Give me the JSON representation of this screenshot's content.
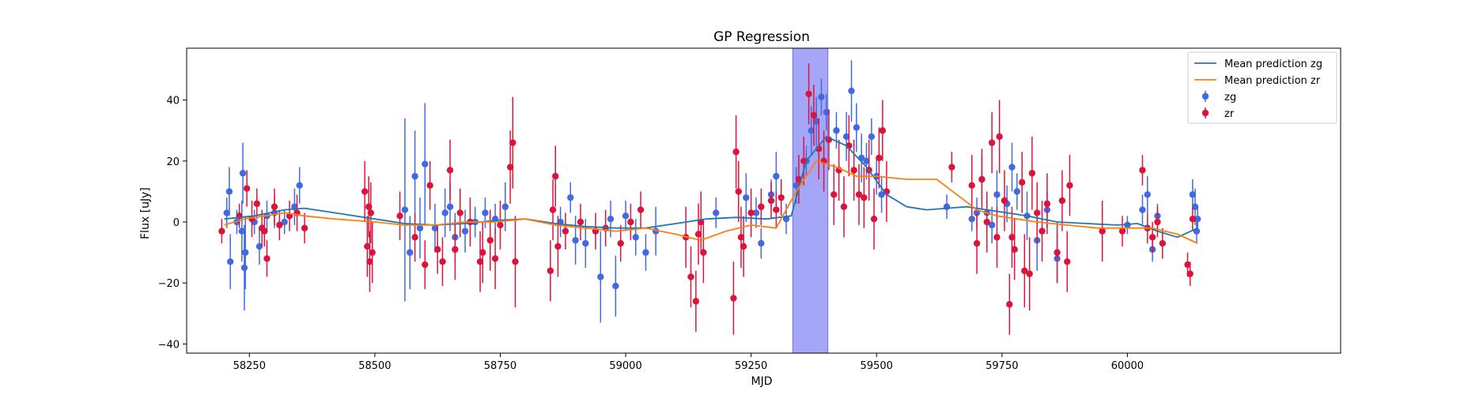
{
  "chart_data": {
    "type": "scatter",
    "title": "GP Regression",
    "xlabel": "MJD",
    "ylabel": "Flux [uJy]",
    "xlim": [
      58125,
      60425
    ],
    "ylim": [
      -43,
      57
    ],
    "xticks": [
      58250,
      58500,
      58750,
      59000,
      59250,
      59500,
      59750,
      60000
    ],
    "yticks": [
      -40,
      -20,
      0,
      20,
      40
    ],
    "grid": false,
    "legend_position": "top-right",
    "highlight_span": {
      "x0": 59333,
      "x1": 59403,
      "color": "#a6a6f8"
    },
    "series": [
      {
        "name": "Mean prediction zg",
        "kind": "line",
        "color": "#1f77b4",
        "x": [
          58200,
          58260,
          58320,
          58360,
          58420,
          58500,
          58560,
          58620,
          58680,
          58740,
          58800,
          58860,
          58920,
          58980,
          59040,
          59100,
          59160,
          59220,
          59280,
          59330,
          59360,
          59400,
          59440,
          59480,
          59520,
          59560,
          59600,
          59640,
          59680,
          59720,
          59760,
          59800,
          59860,
          59920,
          59980,
          60020,
          60060,
          60100,
          60140
        ],
        "y": [
          1,
          2,
          4,
          4.5,
          3,
          1,
          -0.5,
          -1,
          -0.5,
          0.5,
          1,
          -0.5,
          -1.5,
          -2,
          -2,
          -0.5,
          1,
          1.5,
          1,
          2,
          20,
          28,
          25,
          18,
          9,
          5,
          4,
          4.5,
          5,
          4,
          3,
          2,
          0,
          -0.5,
          -1,
          -0.5,
          -3,
          -5,
          -2
        ]
      },
      {
        "name": "Mean prediction zr",
        "kind": "line",
        "color": "#ff7f0e",
        "x": [
          58200,
          58240,
          58280,
          58320,
          58360,
          58420,
          58500,
          58560,
          58620,
          58680,
          58740,
          58800,
          58860,
          58920,
          58980,
          59040,
          59100,
          59150,
          59200,
          59250,
          59300,
          59340,
          59380,
          59420,
          59460,
          59500,
          59560,
          59620,
          59660,
          59700,
          59740,
          59780,
          59820,
          59880,
          59940,
          60000,
          60050,
          60100,
          60140
        ],
        "y": [
          -1,
          1,
          2,
          3,
          2,
          1,
          0,
          -1,
          -1,
          0,
          0,
          1,
          -1,
          -2,
          -3,
          -2,
          -4,
          -6,
          -3,
          -1,
          -2,
          10,
          20,
          18,
          15,
          15,
          14,
          14,
          9,
          4,
          2,
          1,
          0,
          -1,
          -2,
          -2,
          -2,
          -4,
          -7
        ]
      },
      {
        "name": "zg",
        "kind": "errorbar",
        "color": "#4169e1",
        "points": [
          [
            58205,
            3,
            5
          ],
          [
            58210,
            10,
            8
          ],
          [
            58212,
            -13,
            9
          ],
          [
            58225,
            0,
            4
          ],
          [
            58235,
            -3,
            10
          ],
          [
            58237,
            16,
            10
          ],
          [
            58240,
            -15,
            14
          ],
          [
            58242,
            -10,
            12
          ],
          [
            58260,
            0,
            4
          ],
          [
            58270,
            -8,
            6
          ],
          [
            58285,
            2,
            5
          ],
          [
            58300,
            3,
            5
          ],
          [
            58320,
            0,
            4
          ],
          [
            58340,
            5,
            6
          ],
          [
            58350,
            12,
            6
          ],
          [
            58560,
            4,
            30
          ],
          [
            58570,
            -10,
            12
          ],
          [
            58580,
            15,
            15
          ],
          [
            58590,
            -2,
            10
          ],
          [
            58600,
            19,
            20
          ],
          [
            58620,
            -2,
            8
          ],
          [
            58640,
            3,
            8
          ],
          [
            58650,
            5,
            8
          ],
          [
            58660,
            -5,
            8
          ],
          [
            58680,
            -3,
            7
          ],
          [
            58700,
            0,
            5
          ],
          [
            58720,
            3,
            5
          ],
          [
            58740,
            1,
            5
          ],
          [
            58760,
            5,
            8
          ],
          [
            58870,
            0,
            5
          ],
          [
            58890,
            8,
            5
          ],
          [
            58900,
            -6,
            8
          ],
          [
            58920,
            -7,
            8
          ],
          [
            58950,
            -18,
            15
          ],
          [
            58970,
            1,
            6
          ],
          [
            58980,
            -21,
            10
          ],
          [
            59000,
            2,
            5
          ],
          [
            59020,
            -5,
            6
          ],
          [
            59040,
            -10,
            6
          ],
          [
            59060,
            -3,
            8
          ],
          [
            59180,
            3,
            5
          ],
          [
            59240,
            8,
            8
          ],
          [
            59260,
            3,
            5
          ],
          [
            59270,
            -7,
            5
          ],
          [
            59290,
            9,
            5
          ],
          [
            59300,
            15,
            8
          ],
          [
            59320,
            1,
            5
          ],
          [
            59340,
            12,
            6
          ],
          [
            59360,
            20,
            5
          ],
          [
            59370,
            30,
            8
          ],
          [
            59380,
            33,
            8
          ],
          [
            59390,
            41,
            6
          ],
          [
            59400,
            36,
            6
          ],
          [
            59420,
            30,
            6
          ],
          [
            59440,
            28,
            8
          ],
          [
            59450,
            43,
            10
          ],
          [
            59460,
            31,
            8
          ],
          [
            59470,
            21,
            8
          ],
          [
            59480,
            20,
            6
          ],
          [
            59490,
            28,
            6
          ],
          [
            59500,
            15,
            6
          ],
          [
            59510,
            9,
            6
          ],
          [
            59640,
            5,
            4
          ],
          [
            59690,
            1,
            4
          ],
          [
            59700,
            3,
            5
          ],
          [
            59710,
            14,
            8
          ],
          [
            59720,
            3,
            6
          ],
          [
            59730,
            -1,
            6
          ],
          [
            59740,
            9,
            8
          ],
          [
            59760,
            6,
            6
          ],
          [
            59770,
            18,
            8
          ],
          [
            59780,
            10,
            6
          ],
          [
            59800,
            2,
            8
          ],
          [
            59820,
            -6,
            10
          ],
          [
            59840,
            4,
            6
          ],
          [
            59860,
            -12,
            8
          ],
          [
            60000,
            -1,
            3
          ],
          [
            60030,
            4,
            5
          ],
          [
            60040,
            9,
            6
          ],
          [
            60050,
            -9,
            4
          ],
          [
            60060,
            2,
            4
          ],
          [
            60130,
            9,
            5
          ],
          [
            60135,
            5,
            6
          ],
          [
            60138,
            -3,
            4
          ],
          [
            60140,
            1,
            4
          ]
        ]
      },
      {
        "name": "zr",
        "kind": "errorbar",
        "color": "#dc143c",
        "points": [
          [
            58195,
            -3,
            4
          ],
          [
            58230,
            2,
            4
          ],
          [
            58245,
            11,
            6
          ],
          [
            58255,
            1,
            6
          ],
          [
            58265,
            6,
            5
          ],
          [
            58275,
            -2,
            6
          ],
          [
            58280,
            -3,
            5
          ],
          [
            58285,
            -12,
            6
          ],
          [
            58300,
            5,
            6
          ],
          [
            58310,
            -1,
            5
          ],
          [
            58330,
            2,
            5
          ],
          [
            58345,
            3,
            6
          ],
          [
            58360,
            -2,
            5
          ],
          [
            58480,
            10,
            10
          ],
          [
            58485,
            -8,
            10
          ],
          [
            58488,
            5,
            10
          ],
          [
            58490,
            -13,
            10
          ],
          [
            58492,
            3,
            10
          ],
          [
            58495,
            -10,
            10
          ],
          [
            58550,
            2,
            8
          ],
          [
            58580,
            -5,
            8
          ],
          [
            58600,
            -14,
            8
          ],
          [
            58610,
            12,
            8
          ],
          [
            58625,
            -9,
            8
          ],
          [
            58635,
            -13,
            8
          ],
          [
            58650,
            17,
            10
          ],
          [
            58660,
            -9,
            10
          ],
          [
            58670,
            3,
            8
          ],
          [
            58690,
            0,
            8
          ],
          [
            58710,
            -13,
            10
          ],
          [
            58715,
            -10,
            10
          ],
          [
            58730,
            -6,
            10
          ],
          [
            58740,
            -12,
            10
          ],
          [
            58750,
            -1,
            8
          ],
          [
            58770,
            18,
            12
          ],
          [
            58775,
            26,
            15
          ],
          [
            58780,
            -13,
            15
          ],
          [
            58850,
            -16,
            10
          ],
          [
            58855,
            4,
            10
          ],
          [
            58860,
            15,
            10
          ],
          [
            58865,
            -8,
            10
          ],
          [
            58880,
            -3,
            6
          ],
          [
            58910,
            0,
            6
          ],
          [
            58940,
            -3,
            6
          ],
          [
            58960,
            -2,
            6
          ],
          [
            58990,
            -7,
            6
          ],
          [
            59010,
            0,
            6
          ],
          [
            59030,
            4,
            6
          ],
          [
            59120,
            -5,
            10
          ],
          [
            59130,
            -18,
            10
          ],
          [
            59140,
            -26,
            10
          ],
          [
            59145,
            -4,
            10
          ],
          [
            59150,
            0,
            10
          ],
          [
            59155,
            -10,
            10
          ],
          [
            59215,
            -25,
            12
          ],
          [
            59220,
            23,
            12
          ],
          [
            59225,
            10,
            10
          ],
          [
            59230,
            -5,
            10
          ],
          [
            59235,
            -8,
            10
          ],
          [
            59250,
            3,
            8
          ],
          [
            59270,
            5,
            6
          ],
          [
            59290,
            7,
            6
          ],
          [
            59300,
            4,
            6
          ],
          [
            59310,
            8,
            6
          ],
          [
            59345,
            14,
            8
          ],
          [
            59355,
            20,
            8
          ],
          [
            59365,
            42,
            10
          ],
          [
            59375,
            35,
            10
          ],
          [
            59385,
            24,
            10
          ],
          [
            59395,
            20,
            10
          ],
          [
            59405,
            27,
            10
          ],
          [
            59415,
            9,
            10
          ],
          [
            59425,
            17,
            10
          ],
          [
            59435,
            5,
            10
          ],
          [
            59445,
            25,
            10
          ],
          [
            59455,
            17,
            10
          ],
          [
            59465,
            9,
            10
          ],
          [
            59475,
            8,
            10
          ],
          [
            59485,
            17,
            10
          ],
          [
            59495,
            1,
            10
          ],
          [
            59505,
            21,
            10
          ],
          [
            59512,
            30,
            10
          ],
          [
            59520,
            10,
            10
          ],
          [
            59650,
            18,
            5
          ],
          [
            59690,
            12,
            10
          ],
          [
            59700,
            -7,
            10
          ],
          [
            59710,
            14,
            10
          ],
          [
            59720,
            0,
            10
          ],
          [
            59730,
            26,
            10
          ],
          [
            59740,
            -5,
            10
          ],
          [
            59745,
            28,
            12
          ],
          [
            59755,
            7,
            10
          ],
          [
            59765,
            -27,
            10
          ],
          [
            59770,
            -5,
            10
          ],
          [
            59775,
            -9,
            10
          ],
          [
            59790,
            13,
            10
          ],
          [
            59795,
            -16,
            12
          ],
          [
            59805,
            -17,
            12
          ],
          [
            59810,
            16,
            12
          ],
          [
            59820,
            3,
            10
          ],
          [
            59830,
            -3,
            10
          ],
          [
            59840,
            6,
            10
          ],
          [
            59860,
            -10,
            10
          ],
          [
            59870,
            7,
            10
          ],
          [
            59880,
            -13,
            10
          ],
          [
            59885,
            12,
            10
          ],
          [
            59950,
            -3,
            10
          ],
          [
            59990,
            -3,
            5
          ],
          [
            60030,
            17,
            5
          ],
          [
            60040,
            -2,
            5
          ],
          [
            60050,
            -5,
            5
          ],
          [
            60060,
            0,
            5
          ],
          [
            60070,
            -7,
            5
          ],
          [
            60120,
            -14,
            4
          ],
          [
            60125,
            -17,
            4
          ],
          [
            60130,
            1,
            4
          ]
        ]
      }
    ]
  }
}
